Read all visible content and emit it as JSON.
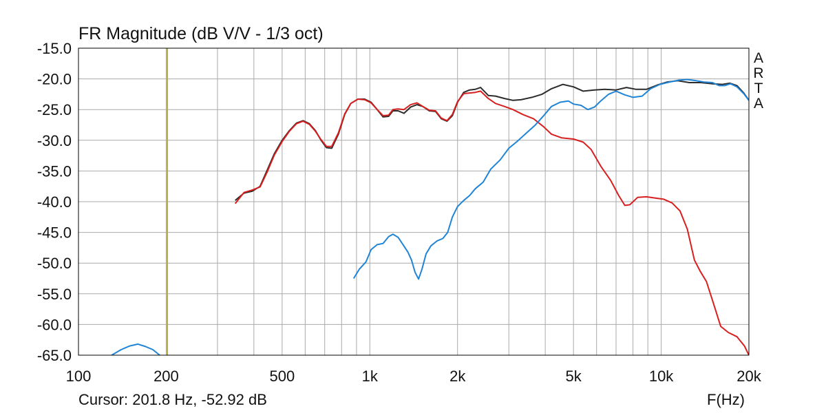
{
  "title": "FR Magnitude (dB V/V - 1/3 oct)",
  "cursor_readout": "Cursor: 201.8 Hz, -52.92 dB",
  "x_unit": "F(Hz)",
  "brand": [
    "A",
    "R",
    "T",
    "A"
  ],
  "colors": {
    "grid": "#a9a9a9",
    "frame": "#000000",
    "cursor": "#b5ad3c",
    "total": "#2b2b2b",
    "woofer": "#d81e1e",
    "tweeter": "#1f84d6"
  },
  "chart_data": {
    "type": "line",
    "title": "FR Magnitude (dB V/V - 1/3 oct)",
    "xlabel": "F(Hz)",
    "ylabel": "",
    "x_scale": "log",
    "xlim": [
      100,
      20000
    ],
    "ylim": [
      -65,
      -15
    ],
    "grid": true,
    "x_ticks": [
      {
        "value": 100,
        "label": "100"
      },
      {
        "value": 200,
        "label": "200"
      },
      {
        "value": 500,
        "label": "500"
      },
      {
        "value": 1000,
        "label": "1k"
      },
      {
        "value": 2000,
        "label": "2k"
      },
      {
        "value": 5000,
        "label": "5k"
      },
      {
        "value": 10000,
        "label": "10k"
      },
      {
        "value": 20000,
        "label": "20k"
      }
    ],
    "y_ticks": [
      {
        "value": -15,
        "label": "-15.0"
      },
      {
        "value": -20,
        "label": "-20.0"
      },
      {
        "value": -25,
        "label": "-25.0"
      },
      {
        "value": -30,
        "label": "-30.0"
      },
      {
        "value": -35,
        "label": "-35.0"
      },
      {
        "value": -40,
        "label": "-40.0"
      },
      {
        "value": -45,
        "label": "-45.0"
      },
      {
        "value": -50,
        "label": "-50.0"
      },
      {
        "value": -55,
        "label": "-55.0"
      },
      {
        "value": -60,
        "label": "-60.0"
      },
      {
        "value": -65,
        "label": "-65.0"
      }
    ],
    "cursor": {
      "x": 201.8,
      "y": -52.92
    },
    "series": [
      {
        "color": "#2b2b2b",
        "points": [
          [
            345,
            -39.8
          ],
          [
            370,
            -38.6
          ],
          [
            395,
            -38.3
          ],
          [
            420,
            -37.5
          ],
          [
            445,
            -34.8
          ],
          [
            470,
            -32.2
          ],
          [
            500,
            -30.0
          ],
          [
            530,
            -28.4
          ],
          [
            560,
            -27.2
          ],
          [
            590,
            -26.8
          ],
          [
            620,
            -27.3
          ],
          [
            650,
            -28.4
          ],
          [
            680,
            -30.0
          ],
          [
            710,
            -31.2
          ],
          [
            740,
            -31.3
          ],
          [
            780,
            -29.0
          ],
          [
            820,
            -25.8
          ],
          [
            860,
            -24.0
          ],
          [
            910,
            -23.3
          ],
          [
            960,
            -23.3
          ],
          [
            1010,
            -23.8
          ],
          [
            1060,
            -25.0
          ],
          [
            1110,
            -26.2
          ],
          [
            1160,
            -26.1
          ],
          [
            1200,
            -25.2
          ],
          [
            1250,
            -25.2
          ],
          [
            1310,
            -25.6
          ],
          [
            1380,
            -24.6
          ],
          [
            1450,
            -24.2
          ],
          [
            1520,
            -24.5
          ],
          [
            1600,
            -25.2
          ],
          [
            1680,
            -25.3
          ],
          [
            1760,
            -26.5
          ],
          [
            1840,
            -26.9
          ],
          [
            1920,
            -26.0
          ],
          [
            2000,
            -23.8
          ],
          [
            2100,
            -22.2
          ],
          [
            2200,
            -21.8
          ],
          [
            2300,
            -21.7
          ],
          [
            2400,
            -21.4
          ],
          [
            2550,
            -22.7
          ],
          [
            2700,
            -22.8
          ],
          [
            2900,
            -23.2
          ],
          [
            3100,
            -23.5
          ],
          [
            3300,
            -23.4
          ],
          [
            3600,
            -23.0
          ],
          [
            3900,
            -22.5
          ],
          [
            4200,
            -21.6
          ],
          [
            4600,
            -20.9
          ],
          [
            5000,
            -21.3
          ],
          [
            5400,
            -22.0
          ],
          [
            5900,
            -21.8
          ],
          [
            6400,
            -21.7
          ],
          [
            7000,
            -21.8
          ],
          [
            7600,
            -21.4
          ],
          [
            8200,
            -21.7
          ],
          [
            8900,
            -21.7
          ],
          [
            9700,
            -21.0
          ],
          [
            10500,
            -20.5
          ],
          [
            11400,
            -20.3
          ],
          [
            12500,
            -20.6
          ],
          [
            13700,
            -20.6
          ],
          [
            15000,
            -20.8
          ],
          [
            16200,
            -20.9
          ],
          [
            17200,
            -20.7
          ],
          [
            18200,
            -21.1
          ],
          [
            19200,
            -22.3
          ],
          [
            20000,
            -23.5
          ]
        ]
      },
      {
        "color": "#d81e1e",
        "points": [
          [
            345,
            -40.3
          ],
          [
            370,
            -38.5
          ],
          [
            395,
            -38.1
          ],
          [
            420,
            -37.6
          ],
          [
            445,
            -35.1
          ],
          [
            470,
            -32.4
          ],
          [
            500,
            -30.2
          ],
          [
            530,
            -28.5
          ],
          [
            560,
            -27.3
          ],
          [
            590,
            -26.9
          ],
          [
            620,
            -27.4
          ],
          [
            650,
            -28.5
          ],
          [
            680,
            -29.9
          ],
          [
            710,
            -31.0
          ],
          [
            740,
            -31.0
          ],
          [
            780,
            -28.8
          ],
          [
            820,
            -25.7
          ],
          [
            860,
            -24.0
          ],
          [
            910,
            -23.3
          ],
          [
            960,
            -23.4
          ],
          [
            1010,
            -23.9
          ],
          [
            1060,
            -25.0
          ],
          [
            1110,
            -26.0
          ],
          [
            1160,
            -25.9
          ],
          [
            1200,
            -25.0
          ],
          [
            1250,
            -24.9
          ],
          [
            1310,
            -25.0
          ],
          [
            1380,
            -24.2
          ],
          [
            1450,
            -23.9
          ],
          [
            1520,
            -24.5
          ],
          [
            1600,
            -25.1
          ],
          [
            1680,
            -25.2
          ],
          [
            1760,
            -26.4
          ],
          [
            1840,
            -26.8
          ],
          [
            1920,
            -25.8
          ],
          [
            2000,
            -23.7
          ],
          [
            2100,
            -22.4
          ],
          [
            2200,
            -22.3
          ],
          [
            2300,
            -22.2
          ],
          [
            2400,
            -22.0
          ],
          [
            2550,
            -23.2
          ],
          [
            2700,
            -24.0
          ],
          [
            2900,
            -24.5
          ],
          [
            3100,
            -25.0
          ],
          [
            3350,
            -25.8
          ],
          [
            3650,
            -26.5
          ],
          [
            3950,
            -27.8
          ],
          [
            4200,
            -29.0
          ],
          [
            4550,
            -29.6
          ],
          [
            5000,
            -29.8
          ],
          [
            5400,
            -30.3
          ],
          [
            5750,
            -31.5
          ],
          [
            6200,
            -34.2
          ],
          [
            6700,
            -36.5
          ],
          [
            7150,
            -39.0
          ],
          [
            7500,
            -40.6
          ],
          [
            7800,
            -40.5
          ],
          [
            8300,
            -39.3
          ],
          [
            8900,
            -39.2
          ],
          [
            9500,
            -39.4
          ],
          [
            10200,
            -39.6
          ],
          [
            10900,
            -40.2
          ],
          [
            11600,
            -41.5
          ],
          [
            12300,
            -44.5
          ],
          [
            13000,
            -49.5
          ],
          [
            13600,
            -51.3
          ],
          [
            14300,
            -53.0
          ],
          [
            15100,
            -56.5
          ],
          [
            16000,
            -60.3
          ],
          [
            17000,
            -61.3
          ],
          [
            18200,
            -62.0
          ],
          [
            19300,
            -63.5
          ],
          [
            20000,
            -65.0
          ]
        ]
      },
      {
        "color": "#1f84d6",
        "points": [
          [
            880,
            -52.5
          ],
          [
            920,
            -51.0
          ],
          [
            970,
            -49.8
          ],
          [
            1010,
            -47.8
          ],
          [
            1060,
            -47.0
          ],
          [
            1110,
            -46.8
          ],
          [
            1160,
            -45.7
          ],
          [
            1200,
            -45.3
          ],
          [
            1250,
            -45.8
          ],
          [
            1300,
            -47.0
          ],
          [
            1350,
            -48.2
          ],
          [
            1390,
            -49.5
          ],
          [
            1430,
            -51.5
          ],
          [
            1470,
            -52.6
          ],
          [
            1510,
            -51.0
          ],
          [
            1560,
            -48.5
          ],
          [
            1620,
            -47.2
          ],
          [
            1700,
            -46.4
          ],
          [
            1780,
            -46.0
          ],
          [
            1850,
            -45.0
          ],
          [
            1920,
            -42.5
          ],
          [
            2000,
            -40.8
          ],
          [
            2100,
            -39.8
          ],
          [
            2200,
            -39.0
          ],
          [
            2300,
            -37.9
          ],
          [
            2450,
            -36.8
          ],
          [
            2600,
            -34.7
          ],
          [
            2800,
            -33.2
          ],
          [
            3000,
            -31.3
          ],
          [
            3200,
            -30.2
          ],
          [
            3450,
            -28.8
          ],
          [
            3700,
            -27.5
          ],
          [
            3950,
            -26.0
          ],
          [
            4200,
            -24.5
          ],
          [
            4500,
            -23.8
          ],
          [
            4800,
            -23.6
          ],
          [
            5000,
            -24.1
          ],
          [
            5300,
            -24.3
          ],
          [
            5600,
            -25.0
          ],
          [
            5900,
            -24.6
          ],
          [
            6200,
            -23.6
          ],
          [
            6600,
            -22.5
          ],
          [
            7000,
            -22.0
          ],
          [
            7500,
            -22.6
          ],
          [
            8000,
            -23.0
          ],
          [
            8600,
            -22.8
          ],
          [
            9200,
            -21.6
          ],
          [
            9900,
            -20.9
          ],
          [
            10700,
            -20.5
          ],
          [
            11500,
            -20.2
          ],
          [
            12300,
            -20.1
          ],
          [
            13200,
            -20.3
          ],
          [
            14000,
            -20.5
          ],
          [
            15000,
            -20.6
          ],
          [
            15800,
            -21.1
          ],
          [
            16500,
            -21.1
          ],
          [
            17300,
            -20.8
          ],
          [
            18200,
            -21.3
          ],
          [
            19200,
            -22.4
          ],
          [
            20000,
            -23.5
          ]
        ]
      },
      {
        "color": "#1f84d6",
        "points": [
          [
            130,
            -65.0
          ],
          [
            140,
            -64.1
          ],
          [
            150,
            -63.5
          ],
          [
            160,
            -63.2
          ],
          [
            170,
            -63.6
          ],
          [
            180,
            -64.1
          ],
          [
            190,
            -65.0
          ]
        ]
      }
    ]
  }
}
